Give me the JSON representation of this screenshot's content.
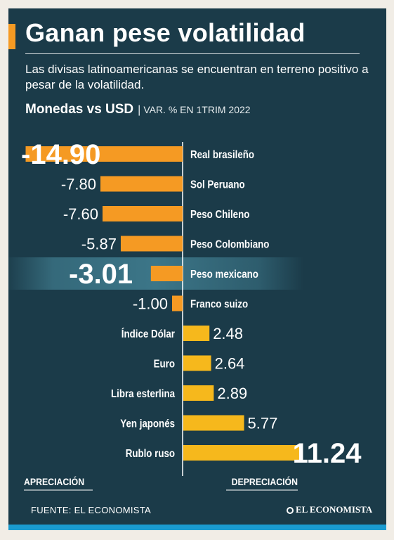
{
  "title": "Ganan pese volatilidad",
  "subtitle": "Las divisas latinoamericanas se encuentran en terreno positivo a pesar de la volatilidad.",
  "heading_bold": "Monedas vs USD",
  "heading_sep": "|",
  "heading_light": "VAR. %  EN 1TRIM 2022",
  "footer": {
    "source": "FUENTE: EL ECONOMISTA",
    "logo": "EL ECONOMISTA",
    "logo_icon": "globe-icon"
  },
  "colors": {
    "background": "#1b3b49",
    "negative_bar": "#f59a23",
    "positive_bar": "#f6b81c",
    "highlight": "#4a8fa3"
  },
  "chart_data": {
    "type": "bar",
    "orientation": "horizontal",
    "categories": [
      "Real brasileño",
      "Sol Peruano",
      "Peso Chileno",
      "Peso Colombiano",
      "Peso mexicano",
      "Franco suizo",
      "Índice Dólar",
      "Euro",
      "Libra esterlina",
      "Yen japonés",
      "Rublo ruso"
    ],
    "values": [
      -14.9,
      -7.8,
      -7.6,
      -5.87,
      -3.01,
      -1.0,
      2.48,
      2.64,
      2.89,
      5.77,
      11.24
    ],
    "value_labels": [
      "-14.90",
      "-7.80",
      "-7.60",
      "-5.87",
      "-3.01",
      "-1.00",
      "2.48",
      "2.64",
      "2.89",
      "5.77",
      "11.24"
    ],
    "emphasized": [
      "Real brasileño",
      "Peso mexicano",
      "Rublo ruso"
    ],
    "highlighted": "Peso mexicano",
    "xlabel_left": "APRECIACIÓN",
    "xlabel_right": "DEPRECIACIÓN",
    "xlim": [
      -14.9,
      11.24
    ]
  }
}
